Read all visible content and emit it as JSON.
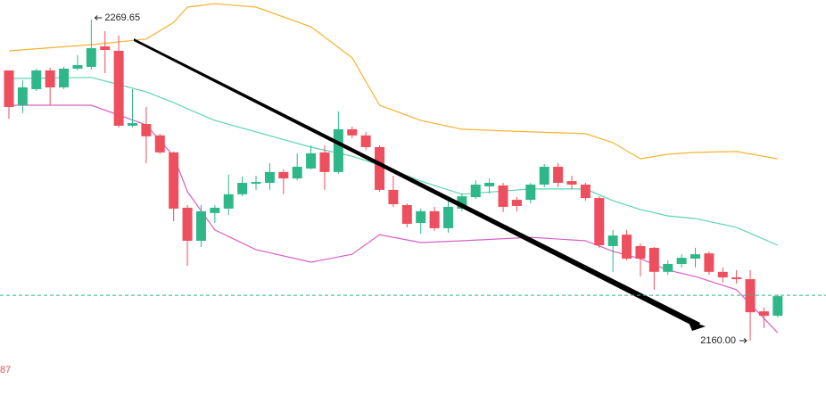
{
  "chart_data": {
    "type": "candlestick",
    "ylim": [
      2137.15,
      2276.35
    ],
    "up_color": "#2eb88a",
    "down_color": "#ee4f5e",
    "open": [
      2252.3,
      2240.4,
      2245.9,
      2252.3,
      2246.5,
      2252.9,
      2253.5,
      2260.5,
      2259.0,
      2233.4,
      2234.0,
      2230.1,
      2224.3,
      2205.4,
      2194.1,
      2203.6,
      2205.1,
      2210.0,
      2213.6,
      2213.9,
      2217.6,
      2215.4,
      2218.8,
      2224.3,
      2217.6,
      2232.2,
      2230.1,
      2226.1,
      2211.5,
      2206.3,
      2200.2,
      2204.2,
      2198.4,
      2205.1,
      2209.0,
      2212.7,
      2213.0,
      2208.1,
      2208.1,
      2213.3,
      2219.4,
      2214.5,
      2213.3,
      2208.7,
      2192.3,
      2196.2,
      2192.3,
      2191.7,
      2183.5,
      2186.2,
      2188.0,
      2189.8,
      2183.5,
      2181.6,
      2181.0,
      2170.0,
      2168.5
    ],
    "high": [
      2252.3,
      2248.9,
      2252.9,
      2253.2,
      2253.5,
      2257.5,
      2269.65,
      2265.7,
      2264.2,
      2245.9,
      2239.8,
      2230.7,
      2224.6,
      2206.3,
      2206.3,
      2206.3,
      2216.7,
      2216.0,
      2216.3,
      2220.6,
      2218.5,
      2224.0,
      2226.7,
      2226.7,
      2238.3,
      2233.1,
      2231.3,
      2226.7,
      2216.3,
      2206.9,
      2205.1,
      2205.7,
      2207.8,
      2210.3,
      2214.8,
      2215.4,
      2213.9,
      2209.0,
      2213.9,
      2220.3,
      2220.6,
      2216.3,
      2213.9,
      2209.3,
      2197.8,
      2197.8,
      2193.2,
      2192.0,
      2187.4,
      2189.5,
      2191.7,
      2190.5,
      2185.0,
      2184.1,
      2184.1,
      2171.3,
      2175.8
    ],
    "low": [
      2235.8,
      2237.7,
      2245.3,
      2240.4,
      2245.9,
      2252.3,
      2252.6,
      2251.4,
      2232.8,
      2232.8,
      2220.6,
      2223.7,
      2200.8,
      2185.6,
      2192.0,
      2200.2,
      2202.9,
      2209.3,
      2211.5,
      2211.5,
      2210.0,
      2214.8,
      2218.5,
      2211.5,
      2217.0,
      2229.1,
      2225.2,
      2210.9,
      2205.7,
      2198.7,
      2196.5,
      2197.5,
      2196.9,
      2204.2,
      2208.4,
      2210.3,
      2203.9,
      2204.2,
      2206.9,
      2212.4,
      2212.4,
      2211.8,
      2207.8,
      2191.7,
      2183.5,
      2187.4,
      2181.9,
      2177.4,
      2182.5,
      2185.0,
      2185.0,
      2182.5,
      2179.8,
      2179.5,
      2160.0,
      2164.3,
      2167.9
    ],
    "close": [
      2239.8,
      2246.5,
      2252.3,
      2246.5,
      2252.9,
      2254.1,
      2259.9,
      2259.3,
      2233.4,
      2234.3,
      2229.8,
      2224.3,
      2205.1,
      2194.1,
      2204.2,
      2205.4,
      2210.0,
      2213.9,
      2214.2,
      2217.6,
      2215.4,
      2219.4,
      2224.0,
      2217.6,
      2232.2,
      2230.1,
      2226.1,
      2211.5,
      2206.6,
      2199.9,
      2204.2,
      2198.4,
      2205.7,
      2209.3,
      2213.3,
      2213.9,
      2205.7,
      2206.0,
      2213.3,
      2219.4,
      2213.9,
      2213.3,
      2208.7,
      2192.6,
      2195.9,
      2188.0,
      2188.0,
      2183.5,
      2186.2,
      2188.3,
      2189.5,
      2183.5,
      2181.6,
      2181.0,
      2169.7,
      2168.5,
      2175.2
    ],
    "bands": [
      {
        "color": "#f5b330",
        "x": [
          0,
          6,
          10,
          12,
          13,
          15,
          18,
          22,
          25,
          27,
          30,
          33,
          38,
          42,
          44,
          46,
          48,
          50,
          53,
          56
        ],
        "values": [
          2259.0,
          2261.1,
          2263.0,
          2268.7,
          2273.9,
          2275.1,
          2273.9,
          2267.2,
          2256.6,
          2240.4,
          2235.2,
          2232.2,
          2231.3,
          2230.7,
          2227.6,
          2222.1,
          2223.7,
          2224.3,
          2224.6,
          2222.1
        ]
      },
      {
        "color": "#5fd3b3",
        "x": [
          0,
          6,
          10,
          12,
          13,
          15,
          18,
          22,
          25,
          27,
          30,
          33,
          38,
          42,
          44,
          46,
          48,
          50,
          53,
          56
        ],
        "values": [
          2249.5,
          2249.9,
          2245.0,
          2241.3,
          2239.2,
          2235.2,
          2231.3,
          2226.1,
          2223.0,
          2220.0,
          2214.5,
          2210.0,
          2211.8,
          2211.8,
          2207.8,
          2204.8,
          2202.6,
          2201.7,
          2198.7,
          2192.6
        ]
      },
      {
        "color": "#d660c8",
        "x": [
          0,
          6,
          10,
          12,
          13,
          15,
          18,
          22,
          25,
          27,
          30,
          33,
          38,
          42,
          44,
          46,
          48,
          50,
          53,
          56
        ],
        "values": [
          2240.4,
          2240.4,
          2233.7,
          2223.0,
          2210.9,
          2197.8,
          2191.1,
          2186.8,
          2189.5,
          2196.2,
          2193.5,
          2194.1,
          2195.3,
          2194.1,
          2190.5,
          2188.0,
          2184.1,
          2181.9,
          2177.4,
          2162.7
        ]
      }
    ],
    "price_line": 2175.5,
    "price_line_color": "#2eb88a",
    "max_label": "2269.65",
    "min_label": "2160.00",
    "corner_label": "87"
  }
}
